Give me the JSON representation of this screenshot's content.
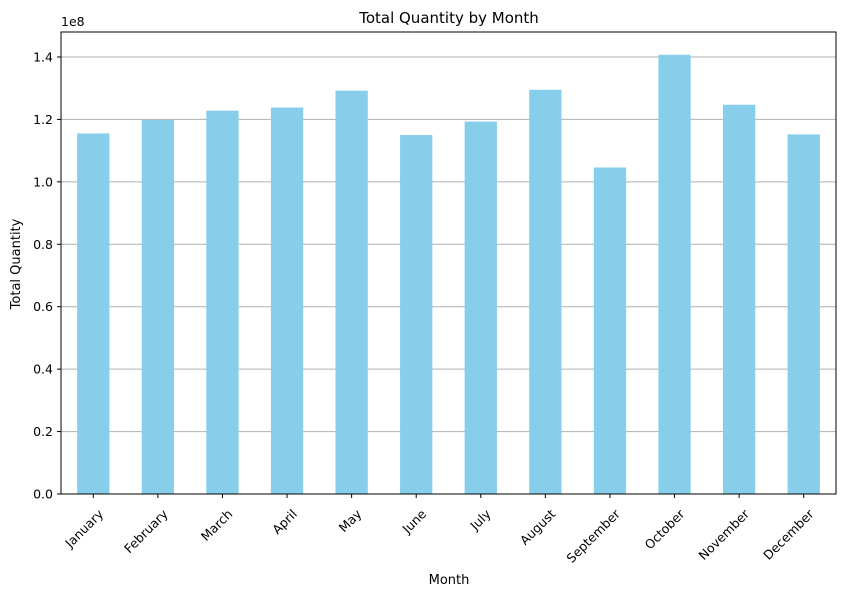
{
  "chart_data": {
    "type": "bar",
    "title": "Total Quantity by Month",
    "xlabel": "Month",
    "ylabel": "Total Quantity",
    "scale_label": "1e8",
    "categories": [
      "January",
      "February",
      "March",
      "April",
      "May",
      "June",
      "July",
      "August",
      "September",
      "October",
      "November",
      "December"
    ],
    "values": [
      115500000,
      119800000,
      122800000,
      123800000,
      129200000,
      115000000,
      119300000,
      129500000,
      104600000,
      140700000,
      124700000,
      115200000
    ],
    "ylim": [
      0,
      148000000
    ],
    "yticks": [
      0,
      20000000,
      40000000,
      60000000,
      80000000,
      100000000,
      120000000,
      140000000
    ],
    "ytick_labels": [
      "0.0",
      "0.2",
      "0.4",
      "0.6",
      "0.8",
      "1.0",
      "1.2",
      "1.4"
    ],
    "grid": "y",
    "bar_color": "#87ceeb",
    "grid_color": "#b0b0b0"
  }
}
